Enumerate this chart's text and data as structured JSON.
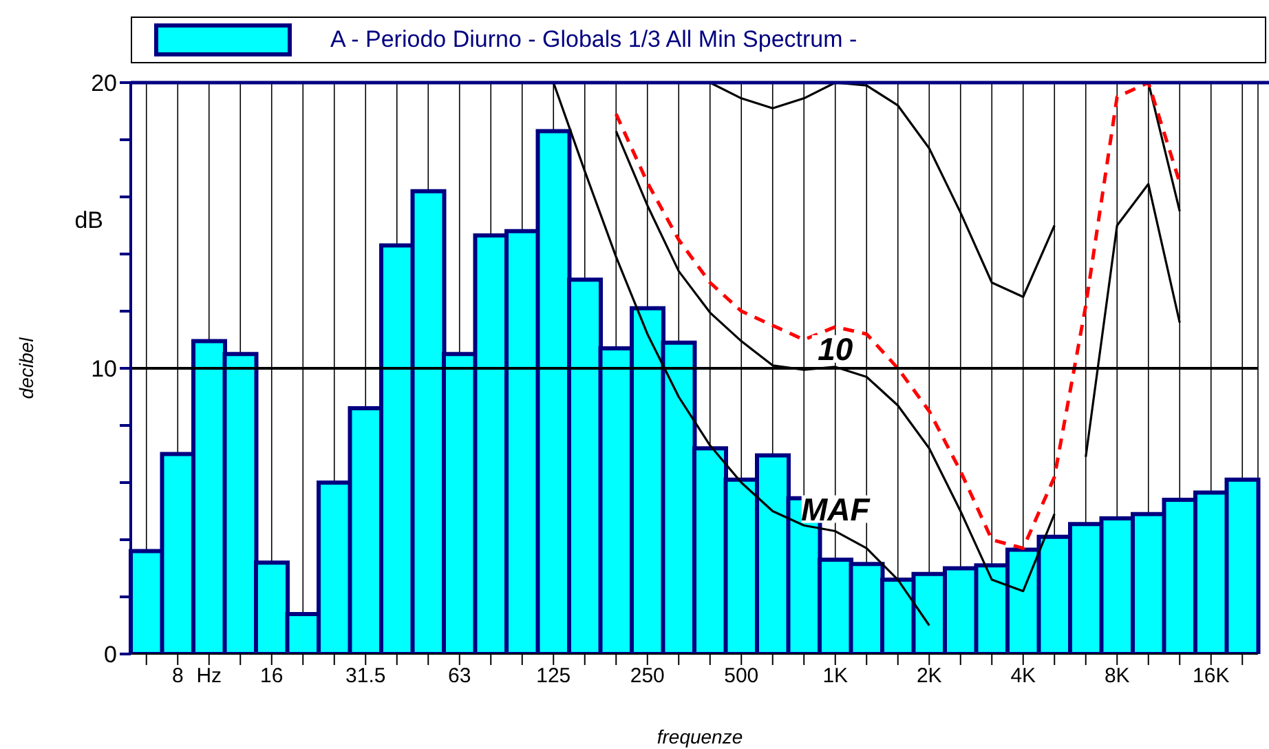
{
  "chart_data": {
    "type": "bar",
    "xlabel": "frequenze",
    "ylabel": "decibel",
    "categories": [
      null,
      "8",
      "Hz",
      null,
      "16",
      null,
      null,
      "31.5",
      null,
      null,
      "63",
      null,
      null,
      "125",
      null,
      null,
      "250",
      null,
      null,
      "500",
      null,
      null,
      "1K",
      null,
      null,
      "2K",
      null,
      null,
      "4K",
      null,
      null,
      "8K",
      null,
      null,
      "16K",
      null
    ],
    "series": [
      {
        "name": "A - Periodo Diurno - Globals 1/3 All Min Spectrum -",
        "color": "#00ffff",
        "values": [
          3.6,
          7.0,
          10.95,
          10.5,
          3.2,
          1.4,
          6.0,
          8.6,
          14.3,
          16.2,
          10.5,
          14.65,
          14.8,
          18.3,
          13.1,
          10.7,
          12.1,
          10.9,
          7.2,
          6.1,
          6.95,
          5.45,
          3.3,
          3.15,
          2.6,
          2.8,
          3.0,
          3.1,
          3.65,
          4.1,
          4.55,
          4.75,
          4.9,
          5.4,
          5.65,
          6.1
        ]
      },
      {
        "type": "line",
        "color": "#000000",
        "line_style": "solid",
        "values": [
          null,
          null,
          null,
          null,
          null,
          null,
          null,
          null,
          null,
          null,
          null,
          null,
          null,
          20,
          16.9,
          13.9,
          11.2,
          9.0,
          7.3,
          6.0,
          5.0,
          4.5,
          4.3,
          3.7,
          2.6,
          1.0,
          null,
          null,
          null,
          null,
          6.9,
          15.0,
          16.45,
          11.6,
          null,
          null
        ]
      },
      {
        "type": "line",
        "color": "#000000",
        "line_style": "solid",
        "values": [
          null,
          null,
          null,
          null,
          null,
          null,
          null,
          null,
          null,
          null,
          null,
          null,
          null,
          null,
          null,
          18.3,
          15.7,
          13.4,
          11.95,
          10.95,
          10.1,
          9.95,
          10.05,
          9.7,
          8.7,
          7.2,
          5.0,
          2.6,
          2.2,
          4.9,
          null,
          null,
          null,
          null,
          null,
          null
        ]
      },
      {
        "type": "line",
        "color": "#000000",
        "line_style": "solid",
        "values": [
          null,
          null,
          null,
          null,
          null,
          null,
          null,
          null,
          null,
          null,
          null,
          null,
          null,
          null,
          null,
          null,
          null,
          null,
          20,
          19.45,
          19.1,
          19.45,
          20,
          19.9,
          19.2,
          17.7,
          15.45,
          13.0,
          12.5,
          15.0,
          null,
          null,
          20,
          15.5,
          null,
          null
        ]
      },
      {
        "type": "line",
        "color": "#ff0000",
        "line_style": "dashed",
        "values": [
          null,
          null,
          null,
          null,
          null,
          null,
          null,
          null,
          null,
          null,
          null,
          null,
          null,
          null,
          null,
          18.9,
          16.5,
          14.5,
          13.0,
          12.0,
          11.5,
          11.0,
          11.45,
          11.2,
          10.0,
          8.5,
          6.4,
          4.0,
          3.7,
          6.2,
          12.2,
          19.5,
          20,
          16.5,
          null,
          null
        ]
      }
    ],
    "ylim": [
      0,
      20
    ],
    "yticks": [
      0,
      {
        "value": 2,
        "label": null
      },
      {
        "value": 4,
        "label": null
      },
      {
        "value": 6,
        "label": null
      },
      {
        "value": 8,
        "label": null
      },
      10,
      {
        "value": 12,
        "label": null
      },
      {
        "value": 14,
        "label": null
      },
      {
        "value": 16,
        "label": null
      },
      {
        "value": 18,
        "label": null
      },
      20
    ],
    "ref_lines": [
      {
        "axis": "y",
        "value": 10,
        "color": "#000000"
      }
    ],
    "grid": "x",
    "legend": "top",
    "marker": "none",
    "annotations": [
      "dB",
      {
        "text": "10",
        "x": "1K",
        "y": 11.45
      },
      {
        "text": "MAF",
        "x": "1K",
        "y": 4.3
      }
    ]
  }
}
